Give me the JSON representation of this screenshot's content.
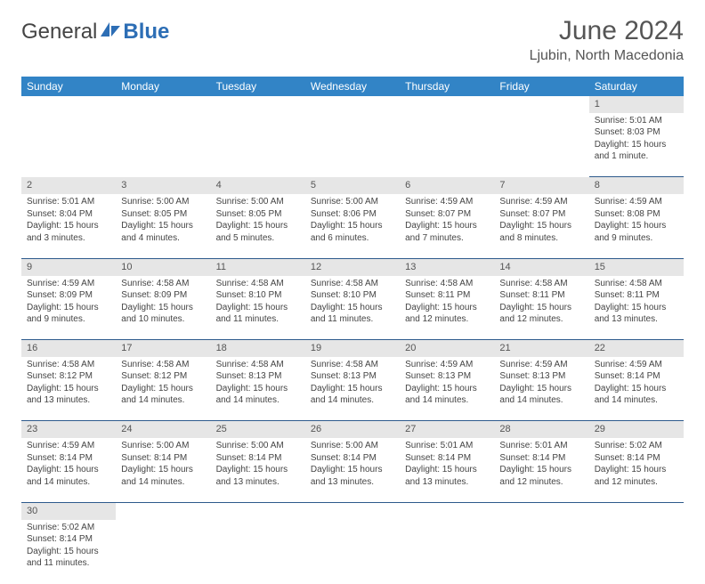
{
  "logo": {
    "text1": "General",
    "text2": "Blue"
  },
  "title": "June 2024",
  "location": "Ljubin, North Macedonia",
  "colors": {
    "header_bg": "#3284c6",
    "header_text": "#ffffff",
    "daynum_bg": "#e6e6e6",
    "row_border": "#2d5a8c",
    "text": "#444444",
    "logo_blue": "#2d6eb5"
  },
  "weekdays": [
    "Sunday",
    "Monday",
    "Tuesday",
    "Wednesday",
    "Thursday",
    "Friday",
    "Saturday"
  ],
  "weeks": [
    [
      null,
      null,
      null,
      null,
      null,
      null,
      {
        "n": "1",
        "sunrise": "5:01 AM",
        "sunset": "8:03 PM",
        "daylight": "15 hours and 1 minute."
      }
    ],
    [
      {
        "n": "2",
        "sunrise": "5:01 AM",
        "sunset": "8:04 PM",
        "daylight": "15 hours and 3 minutes."
      },
      {
        "n": "3",
        "sunrise": "5:00 AM",
        "sunset": "8:05 PM",
        "daylight": "15 hours and 4 minutes."
      },
      {
        "n": "4",
        "sunrise": "5:00 AM",
        "sunset": "8:05 PM",
        "daylight": "15 hours and 5 minutes."
      },
      {
        "n": "5",
        "sunrise": "5:00 AM",
        "sunset": "8:06 PM",
        "daylight": "15 hours and 6 minutes."
      },
      {
        "n": "6",
        "sunrise": "4:59 AM",
        "sunset": "8:07 PM",
        "daylight": "15 hours and 7 minutes."
      },
      {
        "n": "7",
        "sunrise": "4:59 AM",
        "sunset": "8:07 PM",
        "daylight": "15 hours and 8 minutes."
      },
      {
        "n": "8",
        "sunrise": "4:59 AM",
        "sunset": "8:08 PM",
        "daylight": "15 hours and 9 minutes."
      }
    ],
    [
      {
        "n": "9",
        "sunrise": "4:59 AM",
        "sunset": "8:09 PM",
        "daylight": "15 hours and 9 minutes."
      },
      {
        "n": "10",
        "sunrise": "4:58 AM",
        "sunset": "8:09 PM",
        "daylight": "15 hours and 10 minutes."
      },
      {
        "n": "11",
        "sunrise": "4:58 AM",
        "sunset": "8:10 PM",
        "daylight": "15 hours and 11 minutes."
      },
      {
        "n": "12",
        "sunrise": "4:58 AM",
        "sunset": "8:10 PM",
        "daylight": "15 hours and 11 minutes."
      },
      {
        "n": "13",
        "sunrise": "4:58 AM",
        "sunset": "8:11 PM",
        "daylight": "15 hours and 12 minutes."
      },
      {
        "n": "14",
        "sunrise": "4:58 AM",
        "sunset": "8:11 PM",
        "daylight": "15 hours and 12 minutes."
      },
      {
        "n": "15",
        "sunrise": "4:58 AM",
        "sunset": "8:11 PM",
        "daylight": "15 hours and 13 minutes."
      }
    ],
    [
      {
        "n": "16",
        "sunrise": "4:58 AM",
        "sunset": "8:12 PM",
        "daylight": "15 hours and 13 minutes."
      },
      {
        "n": "17",
        "sunrise": "4:58 AM",
        "sunset": "8:12 PM",
        "daylight": "15 hours and 14 minutes."
      },
      {
        "n": "18",
        "sunrise": "4:58 AM",
        "sunset": "8:13 PM",
        "daylight": "15 hours and 14 minutes."
      },
      {
        "n": "19",
        "sunrise": "4:58 AM",
        "sunset": "8:13 PM",
        "daylight": "15 hours and 14 minutes."
      },
      {
        "n": "20",
        "sunrise": "4:59 AM",
        "sunset": "8:13 PM",
        "daylight": "15 hours and 14 minutes."
      },
      {
        "n": "21",
        "sunrise": "4:59 AM",
        "sunset": "8:13 PM",
        "daylight": "15 hours and 14 minutes."
      },
      {
        "n": "22",
        "sunrise": "4:59 AM",
        "sunset": "8:14 PM",
        "daylight": "15 hours and 14 minutes."
      }
    ],
    [
      {
        "n": "23",
        "sunrise": "4:59 AM",
        "sunset": "8:14 PM",
        "daylight": "15 hours and 14 minutes."
      },
      {
        "n": "24",
        "sunrise": "5:00 AM",
        "sunset": "8:14 PM",
        "daylight": "15 hours and 14 minutes."
      },
      {
        "n": "25",
        "sunrise": "5:00 AM",
        "sunset": "8:14 PM",
        "daylight": "15 hours and 13 minutes."
      },
      {
        "n": "26",
        "sunrise": "5:00 AM",
        "sunset": "8:14 PM",
        "daylight": "15 hours and 13 minutes."
      },
      {
        "n": "27",
        "sunrise": "5:01 AM",
        "sunset": "8:14 PM",
        "daylight": "15 hours and 13 minutes."
      },
      {
        "n": "28",
        "sunrise": "5:01 AM",
        "sunset": "8:14 PM",
        "daylight": "15 hours and 12 minutes."
      },
      {
        "n": "29",
        "sunrise": "5:02 AM",
        "sunset": "8:14 PM",
        "daylight": "15 hours and 12 minutes."
      }
    ],
    [
      {
        "n": "30",
        "sunrise": "5:02 AM",
        "sunset": "8:14 PM",
        "daylight": "15 hours and 11 minutes."
      },
      null,
      null,
      null,
      null,
      null,
      null
    ]
  ],
  "labels": {
    "sunrise": "Sunrise: ",
    "sunset": "Sunset: ",
    "daylight": "Daylight: "
  }
}
